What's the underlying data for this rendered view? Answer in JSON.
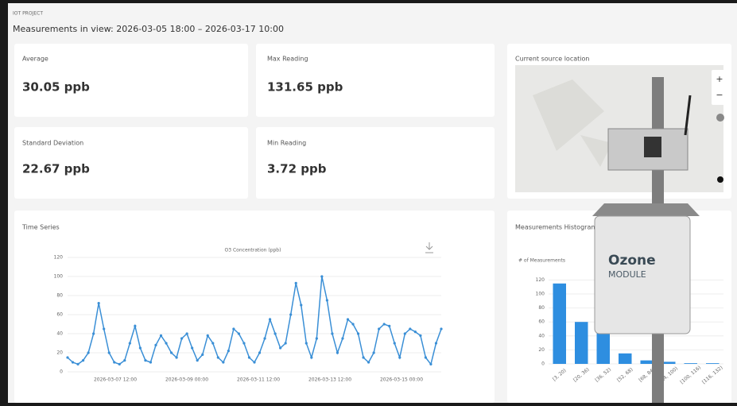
{
  "header": {
    "label": "IOT PROJECT",
    "title": "Measurements in view: 2026-03-05 18:00 – 2026-03-17 10:00"
  },
  "stats": [
    {
      "label": "Average",
      "value": "30.05 ppb"
    },
    {
      "label": "Max Reading",
      "value": "131.65 ppb"
    },
    {
      "label": "Standard Deviation",
      "value": "22.67 ppb"
    },
    {
      "label": "Min Reading",
      "value": "3.72 ppb"
    }
  ],
  "map": {
    "title": "Current source location",
    "zoom_in": "+",
    "zoom_out": "−"
  },
  "time_series": {
    "card_title": "Time Series",
    "type": "line",
    "title": "O3 Concentration (ppb)",
    "color": "#3a8fd6",
    "values": [
      15,
      10,
      8,
      12,
      20,
      40,
      72,
      45,
      20,
      10,
      8,
      12,
      30,
      48,
      25,
      12,
      10,
      28,
      38,
      30,
      20,
      15,
      35,
      40,
      25,
      12,
      18,
      38,
      30,
      15,
      10,
      22,
      45,
      40,
      30,
      15,
      10,
      20,
      35,
      55,
      40,
      25,
      30,
      60,
      93,
      70,
      30,
      15,
      35,
      100,
      75,
      40,
      20,
      35,
      55,
      50,
      40,
      15,
      10,
      20,
      45,
      50,
      48,
      30,
      15,
      40,
      45,
      42,
      38,
      15,
      8,
      30,
      45
    ],
    "ylim": [
      0,
      125
    ],
    "yticks": [
      0,
      20,
      40,
      60,
      80,
      100,
      120
    ],
    "xtick_labels": [
      "2026-03-07 12:00",
      "2026-03-09 00:00",
      "2026-03-11 12:00",
      "2026-03-13 12:00",
      "2026-03-15 00:00"
    ]
  },
  "histogram": {
    "card_title": "Measurements Histogram",
    "type": "bar",
    "ylabel": "# of Measurements",
    "color": "#2e8ee0",
    "categories": [
      "[3, 20)",
      "[20, 36)",
      "[36, 52)",
      "[52, 68)",
      "[68, 84)",
      "[84, 100)",
      "[100, 116)",
      "[116, 132)"
    ],
    "values": [
      115,
      60,
      50,
      15,
      5,
      3,
      1,
      1
    ],
    "ylim": [
      0,
      125
    ],
    "yticks": [
      0,
      20,
      40,
      60,
      80,
      100,
      120
    ]
  },
  "device": {
    "name": "Ozone",
    "subtitle": "MODULE"
  }
}
